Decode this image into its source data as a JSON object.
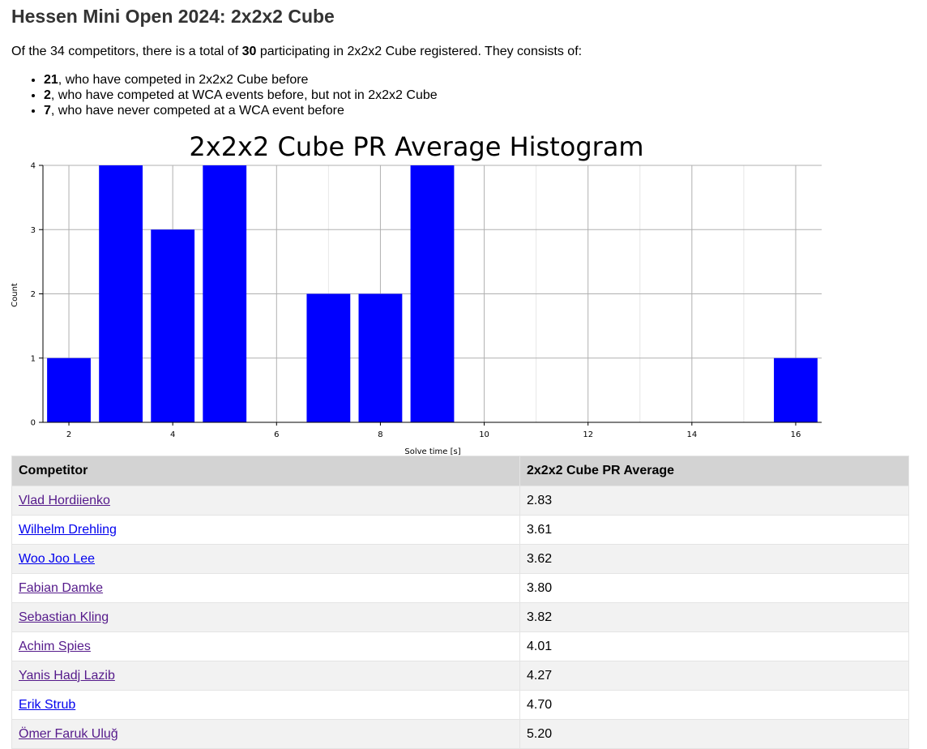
{
  "page": {
    "title": "Hessen Mini Open 2024: 2x2x2 Cube"
  },
  "intro": {
    "prefix": "Of the 34 competitors, there is a total of ",
    "count": "30",
    "suffix": " participating in 2x2x2 Cube registered. They consists of:"
  },
  "breakdown": [
    {
      "count": "21",
      "text": ", who have competed in 2x2x2 Cube before"
    },
    {
      "count": "2",
      "text": ", who have competed at WCA events before, but not in 2x2x2 Cube"
    },
    {
      "count": "7",
      "text": ", who have never competed at a WCA event before"
    }
  ],
  "chart_data": {
    "type": "bar",
    "title": "2x2x2 Cube PR Average Histogram",
    "xlabel": "Solve time [s]",
    "ylabel": "Count",
    "x": [
      2,
      3,
      4,
      5,
      6,
      7,
      8,
      9,
      10,
      11,
      12,
      13,
      14,
      15,
      16
    ],
    "values": [
      1,
      4,
      3,
      4,
      0,
      2,
      2,
      4,
      0,
      0,
      0,
      0,
      0,
      0,
      1
    ],
    "xlim": [
      1.5,
      16.5
    ],
    "ylim": [
      0,
      4
    ],
    "xticks": [
      "2",
      "4",
      "6",
      "8",
      "10",
      "12",
      "14",
      "16"
    ],
    "yticks": [
      "0",
      "1",
      "2",
      "3",
      "4"
    ],
    "bar_color": "#0000ff",
    "grid": true
  },
  "table": {
    "headers": [
      "Competitor",
      "2x2x2 Cube PR Average"
    ],
    "rows": [
      {
        "name": "Vlad Hordiienko",
        "value": "2.83",
        "visited": true
      },
      {
        "name": "Wilhelm Drehling",
        "value": "3.61",
        "visited": false
      },
      {
        "name": "Woo Joo Lee",
        "value": "3.62",
        "visited": false
      },
      {
        "name": "Fabian Damke",
        "value": "3.80",
        "visited": true
      },
      {
        "name": "Sebastian Kling",
        "value": "3.82",
        "visited": true
      },
      {
        "name": "Achim Spies",
        "value": "4.01",
        "visited": true
      },
      {
        "name": "Yanis Hadj Lazib",
        "value": "4.27",
        "visited": true
      },
      {
        "name": "Erik Strub",
        "value": "4.70",
        "visited": false
      },
      {
        "name": "Ömer Faruk Uluğ",
        "value": "5.20",
        "visited": true
      }
    ]
  }
}
